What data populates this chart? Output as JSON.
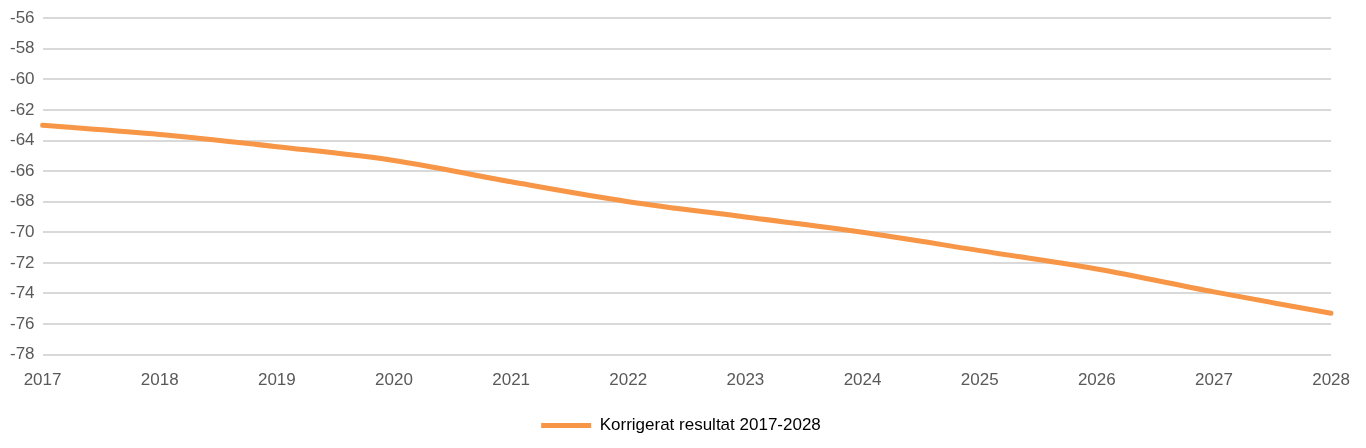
{
  "chart_data": {
    "type": "line",
    "categories": [
      "2017",
      "2018",
      "2019",
      "2020",
      "2021",
      "2022",
      "2023",
      "2024",
      "2025",
      "2026",
      "2027",
      "2028"
    ],
    "series": [
      {
        "name": "Korrigerat resultat 2017-2028",
        "color": "#f79646",
        "values": [
          -63.0,
          -63.6,
          -64.4,
          -65.3,
          -66.7,
          -68.0,
          -69.0,
          -70.0,
          -71.2,
          -72.4,
          -73.9,
          -75.3
        ]
      }
    ],
    "ylim": [
      -78,
      -56
    ],
    "yticks": [
      -78,
      -76,
      -74,
      -72,
      -70,
      -68,
      -66,
      -64,
      -62,
      -60,
      -58,
      -56
    ],
    "grid": "y",
    "legend": "bottom",
    "marker": "none",
    "line_style": "solid"
  }
}
